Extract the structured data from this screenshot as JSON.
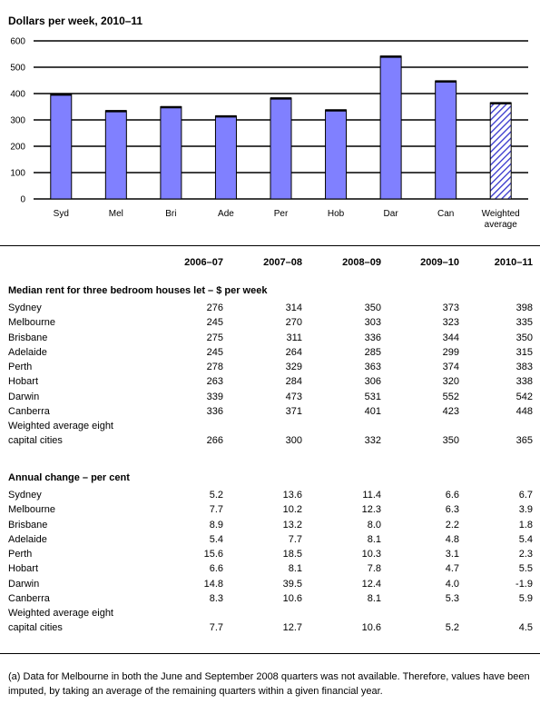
{
  "chart_data": {
    "type": "bar",
    "title": "Dollars per week, 2010–11",
    "categories": [
      "Syd",
      "Mel",
      "Bri",
      "Ade",
      "Per",
      "Hob",
      "Dar",
      "Can",
      "Weighted average"
    ],
    "values": [
      398,
      335,
      350,
      315,
      383,
      338,
      542,
      448,
      365
    ],
    "ylim": [
      0,
      600
    ],
    "yticks": [
      0,
      100,
      200,
      300,
      400,
      500,
      600
    ],
    "grid": true,
    "bar_color": "#8080ff",
    "highlight_color": "#3333cc",
    "highlight_pattern": "hatched",
    "highlight_category": "Weighted average"
  },
  "table": {
    "columns": [
      "2006–07",
      "2007–08",
      "2008–09",
      "2009–10",
      "2010–11"
    ],
    "sections": [
      {
        "title": "Median rent for three bedroom houses let – $ per week",
        "rows": [
          {
            "label": "Sydney",
            "values": [
              "276",
              "314",
              "350",
              "373",
              "398"
            ]
          },
          {
            "label": "Melbourne",
            "values": [
              "245",
              "270",
              "303",
              "323",
              "335"
            ]
          },
          {
            "label": "Brisbane",
            "values": [
              "275",
              "311",
              "336",
              "344",
              "350"
            ]
          },
          {
            "label": "Adelaide",
            "values": [
              "245",
              "264",
              "285",
              "299",
              "315"
            ]
          },
          {
            "label": "Perth",
            "values": [
              "278",
              "329",
              "363",
              "374",
              "383"
            ]
          },
          {
            "label": "Hobart",
            "values": [
              "263",
              "284",
              "306",
              "320",
              "338"
            ]
          },
          {
            "label": "Darwin",
            "values": [
              "339",
              "473",
              "531",
              "552",
              "542"
            ]
          },
          {
            "label": "Canberra",
            "values": [
              "336",
              "371",
              "401",
              "423",
              "448"
            ]
          }
        ],
        "total": {
          "label_line1": "Weighted average eight",
          "label_line2": "capital cities",
          "values": [
            "266",
            "300",
            "332",
            "350",
            "365"
          ]
        }
      },
      {
        "title": "Annual change – per cent",
        "rows": [
          {
            "label": "Sydney",
            "values": [
              "5.2",
              "13.6",
              "11.4",
              "6.6",
              "6.7"
            ]
          },
          {
            "label": "Melbourne",
            "values": [
              "7.7",
              "10.2",
              "12.3",
              "6.3",
              "3.9"
            ]
          },
          {
            "label": "Brisbane",
            "values": [
              "8.9",
              "13.2",
              "8.0",
              "2.2",
              "1.8"
            ]
          },
          {
            "label": "Adelaide",
            "values": [
              "5.4",
              "7.7",
              "8.1",
              "4.8",
              "5.4"
            ]
          },
          {
            "label": "Perth",
            "values": [
              "15.6",
              "18.5",
              "10.3",
              "3.1",
              "2.3"
            ]
          },
          {
            "label": "Hobart",
            "values": [
              "6.6",
              "8.1",
              "7.8",
              "4.7",
              "5.5"
            ]
          },
          {
            "label": "Darwin",
            "values": [
              "14.8",
              "39.5",
              "12.4",
              "4.0",
              "-1.9"
            ]
          },
          {
            "label": "Canberra",
            "values": [
              "8.3",
              "10.6",
              "8.1",
              "5.3",
              "5.9"
            ]
          }
        ],
        "total": {
          "label_line1": "Weighted average eight",
          "label_line2": "capital cities",
          "values": [
            "7.7",
            "12.7",
            "10.6",
            "5.2",
            "4.5"
          ]
        }
      }
    ]
  },
  "footnote": "(a) Data for Melbourne in both the June and September 2008 quarters was not available. Therefore, values have been imputed, by taking an average of the remaining quarters within a given financial year."
}
